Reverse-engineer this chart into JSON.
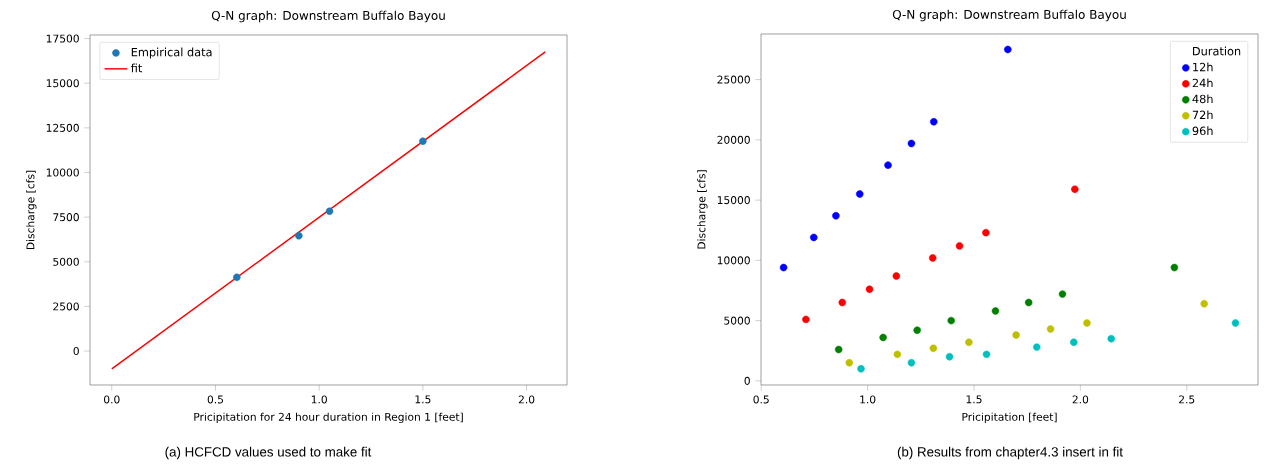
{
  "chart_data": [
    {
      "type": "scatter",
      "title": "Q-N graph: Downstream Buffalo Bayou",
      "xlabel": "Pricipitation for 24 hour duration in Region 1 [feet]",
      "ylabel": "Discharge [cfs]",
      "series": [
        {
          "name": "Empirical data",
          "type": "scatter",
          "marker": "circle",
          "color": "#1f77b4",
          "x": [
            0.603,
            0.902,
            1.05,
            1.5
          ],
          "values": [
            4130,
            6460,
            7830,
            11750
          ]
        },
        {
          "name": "fit",
          "type": "line",
          "marker": "none",
          "color": "#ff0000",
          "x": [
            0,
            2.09
          ],
          "values": [
            -1000,
            16750
          ]
        }
      ],
      "xlim": [
        -0.105,
        2.195
      ],
      "ylim": [
        -1900,
        17700
      ],
      "xticks": [
        {
          "value": 0,
          "label": "0.0"
        },
        {
          "value": 0.5,
          "label": "0.5"
        },
        {
          "value": 1,
          "label": "1.0"
        },
        {
          "value": 1.5,
          "label": "1.5"
        },
        {
          "value": 2,
          "label": "2.0"
        }
      ],
      "yticks": [
        0,
        2500,
        5000,
        7500,
        10000,
        12500,
        15000,
        17500
      ],
      "legend": "top left",
      "grid": false,
      "annotations": [
        "(a) HCFCD values used to make fit"
      ]
    },
    {
      "type": "scatter",
      "title": "Q-N graph: Downstream Buffalo Bayou",
      "xlabel": "Pricipitation [feet]",
      "ylabel": "Discharge [cfs]",
      "legend_title": "Duration",
      "series": [
        {
          "name": "12h",
          "marker": "circle",
          "color": "#0000ff",
          "x": [
            0.605,
            0.747,
            0.851,
            0.963,
            1.096,
            1.206,
            1.311,
            1.659
          ],
          "values": [
            9400,
            11900,
            13700,
            15500,
            17900,
            19700,
            21500,
            27500
          ]
        },
        {
          "name": "24h",
          "marker": "circle",
          "color": "#ff0000",
          "x": [
            0.71,
            0.881,
            1.009,
            1.135,
            1.306,
            1.432,
            1.556,
            1.974
          ],
          "values": [
            5100,
            6500,
            7600,
            8700,
            10200,
            11200,
            12300,
            15900
          ]
        },
        {
          "name": "48h",
          "marker": "circle",
          "color": "#008000",
          "x": [
            0.864,
            1.073,
            1.233,
            1.393,
            1.601,
            1.757,
            1.916,
            2.442
          ],
          "values": [
            2600,
            3600,
            4200,
            5000,
            5800,
            6500,
            7200,
            9400
          ]
        },
        {
          "name": "72h",
          "marker": "circle",
          "color": "#bfbf00",
          "x": [
            0.914,
            1.14,
            1.309,
            1.476,
            1.698,
            1.86,
            2.031,
            2.582
          ],
          "values": [
            1500,
            2200,
            2700,
            3200,
            3800,
            4300,
            4800,
            6400
          ]
        },
        {
          "name": "96h",
          "marker": "circle",
          "color": "#00bfbf",
          "x": [
            0.969,
            1.206,
            1.385,
            1.559,
            1.795,
            1.969,
            2.145,
            2.729
          ],
          "values": [
            1000,
            1500,
            2000,
            2200,
            2800,
            3200,
            3500,
            4800
          ]
        }
      ],
      "xlim": [
        0.499,
        2.835
      ],
      "ylim": [
        -344,
        28784
      ],
      "xticks": [
        {
          "value": 0.5,
          "label": "0.5"
        },
        {
          "value": 1,
          "label": "1.0"
        },
        {
          "value": 1.5,
          "label": "1.5"
        },
        {
          "value": 2,
          "label": "2.0"
        },
        {
          "value": 2.5,
          "label": "2.5"
        }
      ],
      "yticks": [
        0,
        5000,
        10000,
        15000,
        20000,
        25000
      ],
      "legend": "top right",
      "grid": false,
      "annotations": [
        "(b) Results from chapter4.3 insert in fit"
      ]
    }
  ]
}
